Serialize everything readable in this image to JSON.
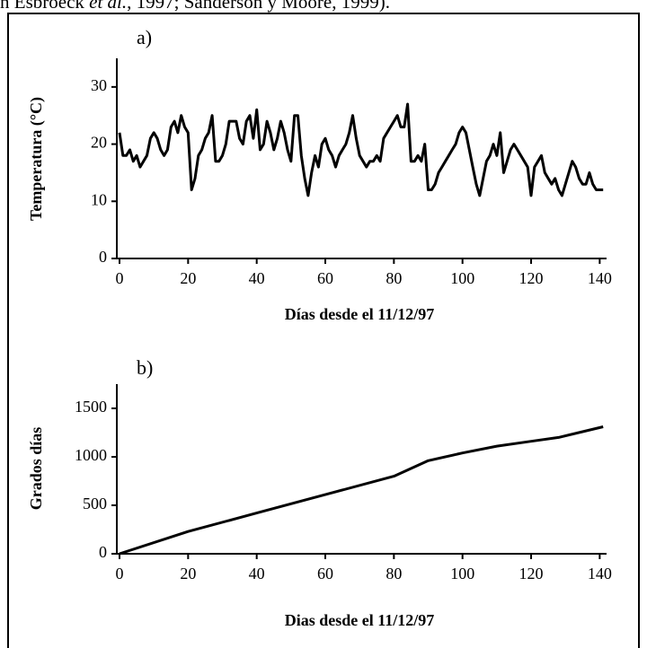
{
  "header_text": [
    "n Esbroeck ",
    "et al.",
    ", 1997; Sanderson y Moore, 1999)."
  ],
  "chart_data": [
    {
      "type": "line",
      "title": "a)",
      "xlabel": "Días desde el 11/12/97",
      "ylabel": "Temperatura (°C)",
      "color": "#000000",
      "x": [
        0,
        1,
        2,
        3,
        4,
        5,
        6,
        7,
        8,
        9,
        10,
        11,
        12,
        13,
        14,
        15,
        16,
        17,
        18,
        19,
        20,
        21,
        22,
        23,
        24,
        25,
        26,
        27,
        28,
        29,
        30,
        31,
        32,
        33,
        34,
        35,
        36,
        37,
        38,
        39,
        40,
        41,
        42,
        43,
        44,
        45,
        46,
        47,
        48,
        49,
        50,
        51,
        52,
        53,
        54,
        55,
        56,
        57,
        58,
        59,
        60,
        61,
        62,
        63,
        64,
        65,
        66,
        67,
        68,
        69,
        70,
        71,
        72,
        73,
        74,
        75,
        76,
        77,
        78,
        79,
        80,
        81,
        82,
        83,
        84,
        85,
        86,
        87,
        88,
        89,
        90,
        91,
        92,
        93,
        94,
        95,
        96,
        97,
        98,
        99,
        100,
        101,
        102,
        103,
        104,
        105,
        106,
        107,
        108,
        109,
        110,
        111,
        112,
        113,
        114,
        115,
        116,
        117,
        118,
        119,
        120,
        121,
        122,
        123,
        124,
        125,
        126,
        127,
        128,
        129,
        130,
        131,
        132,
        133,
        134,
        135,
        136,
        137,
        138,
        139,
        140,
        141
      ],
      "values": [
        22,
        18,
        18,
        19,
        17,
        18,
        16,
        17,
        18,
        21,
        22,
        21,
        19,
        18,
        19,
        23,
        24,
        22,
        25,
        23,
        22,
        12,
        14,
        18,
        19,
        21,
        22,
        25,
        17,
        17,
        18,
        20,
        24,
        24,
        24,
        21,
        20,
        24,
        25,
        21,
        26,
        19,
        20,
        24,
        22,
        19,
        21,
        24,
        22,
        19,
        17,
        25,
        25,
        18,
        14,
        11,
        15,
        18,
        16,
        20,
        21,
        19,
        18,
        16,
        18,
        19,
        20,
        22,
        25,
        21,
        18,
        17,
        16,
        17,
        17,
        18,
        17,
        21,
        22,
        23,
        24,
        25,
        23,
        23,
        27,
        17,
        17,
        18,
        17,
        20,
        12,
        12,
        13,
        15,
        16,
        17,
        18,
        19,
        20,
        22,
        23,
        22,
        19,
        16,
        13,
        11,
        14,
        17,
        18,
        20,
        18,
        22,
        15,
        17,
        19,
        20,
        19,
        18,
        17,
        16,
        11,
        16,
        17,
        18,
        15,
        14,
        13,
        14,
        12,
        11,
        13,
        15,
        17,
        16,
        14,
        13,
        13,
        15,
        13,
        12,
        12,
        12
      ],
      "xlim": [
        0,
        142
      ],
      "xticks": [
        0,
        20,
        40,
        60,
        80,
        100,
        120,
        140
      ],
      "ylim": [
        0,
        35
      ],
      "yticks": [
        0,
        10,
        20,
        30
      ]
    },
    {
      "type": "line",
      "title": "b)",
      "xlabel": "Dias desde el 11/12/97",
      "ylabel": "Grados días",
      "color": "#000000",
      "x": [
        0,
        20,
        40,
        60,
        80,
        90,
        100,
        110,
        120,
        128,
        141
      ],
      "values": [
        0,
        230,
        420,
        610,
        800,
        960,
        1040,
        1110,
        1160,
        1200,
        1310
      ],
      "xlim": [
        0,
        142
      ],
      "xticks": [
        0,
        20,
        40,
        60,
        80,
        100,
        120,
        140
      ],
      "ylim": [
        0,
        1750
      ],
      "yticks": [
        0,
        500,
        1000,
        1500
      ]
    }
  ]
}
